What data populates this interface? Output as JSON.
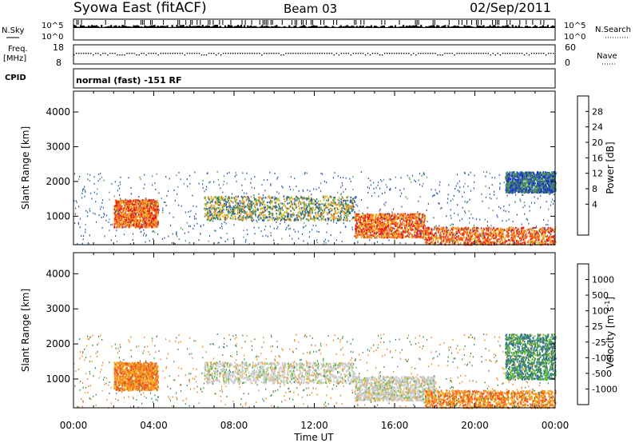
{
  "header": {
    "station": "Syowa East (fitACF)",
    "beam": "Beam 03",
    "date": "02/Sep/2011"
  },
  "strips": {
    "nsky_label": "N.Sky",
    "nsky_ticks": [
      "10^5",
      "10^0"
    ],
    "nsearch_label": "N.Search",
    "nsearch_ticks": [
      "10^5",
      "10^0"
    ],
    "freq_label_1": "Freq.",
    "freq_label_2": "[MHz]",
    "freq_ticks": [
      "18",
      "8"
    ],
    "nave_label": "Nave",
    "nave_ticks": [
      "60",
      "0"
    ],
    "cpid_label": "CPID",
    "cpid_text": "normal (fast) -151 RF"
  },
  "chart_data": [
    {
      "type": "heatmap",
      "title": "",
      "ylabel": "Slant Range [km]",
      "xlabel": "",
      "xlim": [
        "00:00",
        "00:00"
      ],
      "ylim": [
        180,
        4600
      ],
      "y_ticks": [
        1000,
        2000,
        3000,
        4000
      ],
      "colorbar_label": "Power [dB]",
      "colorbar_ticks": [
        28,
        24,
        20,
        16,
        12,
        8,
        4
      ],
      "colorbar_colors": [
        "#e8121a",
        "#f2501a",
        "#f5861f",
        "#f2b624",
        "#a8c83a",
        "#4f9a56",
        "#3a7a5a",
        "#2a5aa8",
        "#1d23e0"
      ],
      "features": [
        {
          "t0": 2.0,
          "t1": 4.2,
          "r0": 700,
          "r1": 1500,
          "level": "high"
        },
        {
          "t0": 6.5,
          "t1": 14.0,
          "r0": 900,
          "r1": 1600,
          "level": "medium"
        },
        {
          "t0": 14.0,
          "t1": 17.5,
          "r0": 400,
          "r1": 1100,
          "level": "high"
        },
        {
          "t0": 17.5,
          "t1": 24.0,
          "r0": 200,
          "r1": 700,
          "level": "high"
        },
        {
          "t0": 21.5,
          "t1": 24.0,
          "r0": 1700,
          "r1": 2300,
          "level": "low"
        }
      ]
    },
    {
      "type": "heatmap",
      "title": "",
      "ylabel": "Slant Range [km]",
      "xlabel": "Time UT",
      "x_ticks": [
        "00:00",
        "04:00",
        "08:00",
        "12:00",
        "16:00",
        "20:00",
        "00:00"
      ],
      "ylim": [
        180,
        4600
      ],
      "y_ticks": [
        1000,
        2000,
        3000,
        4000
      ],
      "colorbar_label": "Velocity [m s",
      "colorbar_label_sup": "-1",
      "colorbar_label_end": "]",
      "colorbar_ticks": [
        "1000",
        "500",
        "100",
        "25",
        "-25",
        "-100",
        "-500",
        "-1000"
      ],
      "colorbar_colors": [
        "#2a3aa8",
        "#2f6aa0",
        "#3e8a5a",
        "#5cbf2e",
        "#c8c8c8",
        "#f2b624",
        "#f5861f",
        "#f2501a",
        "#e8121a"
      ],
      "features": [
        {
          "t0": 2.0,
          "t1": 4.2,
          "r0": 700,
          "r1": 1500,
          "level": "negative"
        },
        {
          "t0": 6.5,
          "t1": 14.0,
          "r0": 900,
          "r1": 1500,
          "level": "near-zero"
        },
        {
          "t0": 14.0,
          "t1": 18.0,
          "r0": 400,
          "r1": 1100,
          "level": "near-zero"
        },
        {
          "t0": 17.5,
          "t1": 24.0,
          "r0": 200,
          "r1": 700,
          "level": "negative"
        },
        {
          "t0": 21.5,
          "t1": 24.0,
          "r0": 1000,
          "r1": 2300,
          "level": "positive"
        }
      ]
    }
  ]
}
